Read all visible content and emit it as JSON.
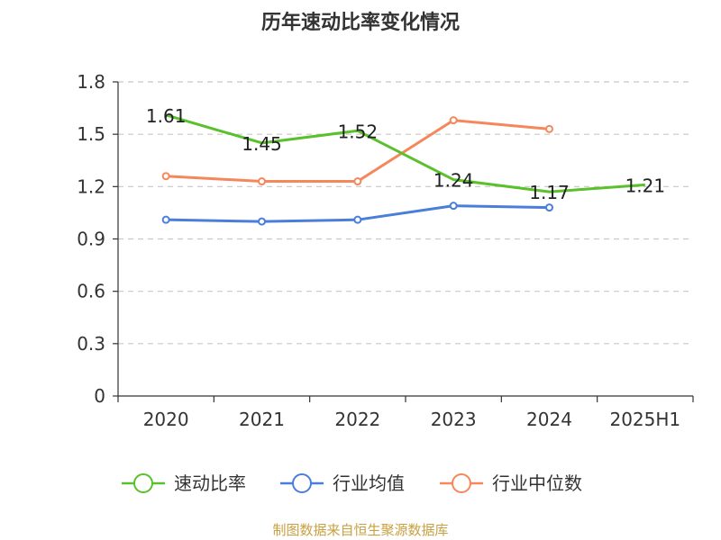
{
  "chart_data": {
    "type": "line",
    "title": "历年速动比率变化情况",
    "categories": [
      "2020",
      "2021",
      "2022",
      "2023",
      "2024",
      "2025H1"
    ],
    "y_ticks": [
      "0",
      "0.3",
      "0.6",
      "0.9",
      "1.2",
      "1.5",
      "1.8"
    ],
    "ylim": [
      0,
      1.8
    ],
    "grid": true,
    "legend_position": "bottom",
    "series": [
      {
        "name": "速动比率",
        "color": "#5ac02c",
        "values": [
          1.61,
          1.45,
          1.52,
          1.24,
          1.17,
          1.21
        ],
        "labels": [
          "1.61",
          "1.45",
          "1.52",
          "1.24",
          "1.17",
          "1.21"
        ],
        "show_markers": false
      },
      {
        "name": "行业均值",
        "color": "#4a7edb",
        "values": [
          1.01,
          1.0,
          1.01,
          1.09,
          1.08,
          null
        ],
        "show_markers": true
      },
      {
        "name": "行业中位数",
        "color": "#f5875a",
        "values": [
          1.26,
          1.23,
          1.23,
          1.58,
          1.53,
          null
        ],
        "show_markers": true
      }
    ],
    "source": "制图数据来自恒生聚源数据库"
  }
}
